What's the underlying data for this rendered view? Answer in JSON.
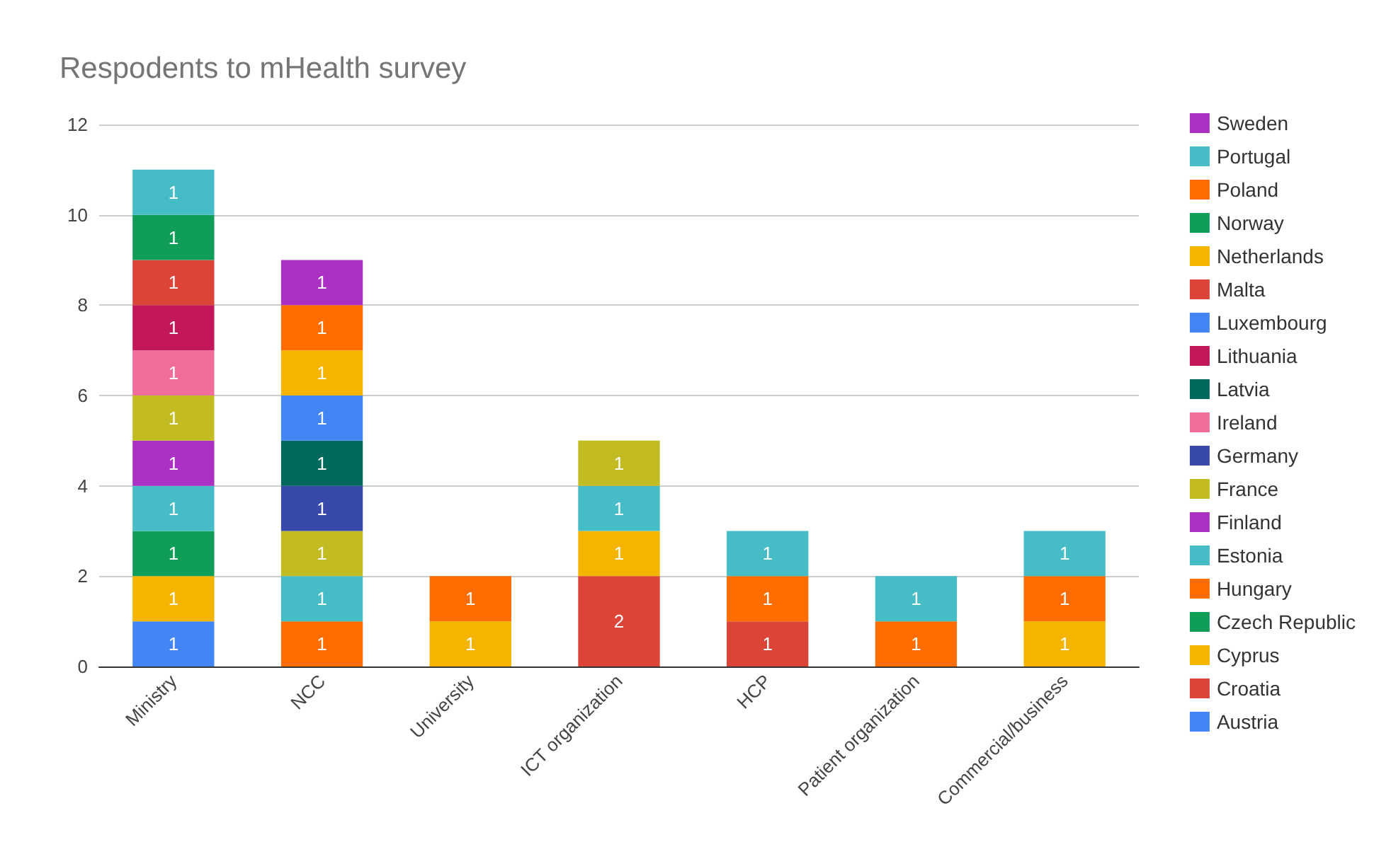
{
  "chart_data": {
    "type": "bar",
    "title": "Respodents to mHealth survey",
    "stacked": true,
    "data_labels": true,
    "grid": "y",
    "legend": "right",
    "categories": [
      "Ministry",
      "NCC",
      "University",
      "ICT organization",
      "HCP",
      "Patient organization",
      "Commercial/business"
    ],
    "ylim": [
      0,
      12
    ],
    "yticks": [
      0,
      2,
      4,
      6,
      8,
      10,
      12
    ],
    "series": [
      {
        "name": "Austria",
        "color": "#4285f4",
        "values": [
          1,
          null,
          null,
          null,
          null,
          null,
          null
        ]
      },
      {
        "name": "Croatia",
        "color": "#db4437",
        "values": [
          null,
          null,
          null,
          2,
          1,
          null,
          null
        ]
      },
      {
        "name": "Cyprus",
        "color": "#f4b400",
        "values": [
          1,
          null,
          1,
          1,
          null,
          null,
          1
        ]
      },
      {
        "name": "Czech Republic",
        "color": "#0f9d58",
        "values": [
          1,
          null,
          null,
          null,
          null,
          null,
          null
        ]
      },
      {
        "name": "Hungary",
        "color": "#ff6d00",
        "values": [
          null,
          1,
          1,
          null,
          1,
          1,
          1
        ]
      },
      {
        "name": "Estonia",
        "color": "#46bdc6",
        "values": [
          1,
          1,
          null,
          1,
          1,
          1,
          1
        ]
      },
      {
        "name": "Finland",
        "color": "#ab30c4",
        "values": [
          1,
          null,
          null,
          null,
          null,
          null,
          null
        ]
      },
      {
        "name": "France",
        "color": "#c2bb22",
        "values": [
          1,
          1,
          null,
          1,
          null,
          null,
          null
        ]
      },
      {
        "name": "Germany",
        "color": "#3949ab",
        "values": [
          null,
          1,
          null,
          null,
          null,
          null,
          null
        ]
      },
      {
        "name": "Ireland",
        "color": "#f06c9b",
        "values": [
          1,
          null,
          null,
          null,
          null,
          null,
          null
        ]
      },
      {
        "name": "Latvia",
        "color": "#00695c",
        "values": [
          null,
          1,
          null,
          null,
          null,
          null,
          null
        ]
      },
      {
        "name": "Lithuania",
        "color": "#c2185b",
        "values": [
          1,
          null,
          null,
          null,
          null,
          null,
          null
        ]
      },
      {
        "name": "Luxembourg",
        "color": "#4285f4",
        "values": [
          null,
          1,
          null,
          null,
          null,
          null,
          null
        ]
      },
      {
        "name": "Malta",
        "color": "#db4437",
        "values": [
          1,
          null,
          null,
          null,
          null,
          null,
          null
        ]
      },
      {
        "name": "Netherlands",
        "color": "#f4b400",
        "values": [
          null,
          1,
          null,
          null,
          null,
          null,
          null
        ]
      },
      {
        "name": "Norway",
        "color": "#0f9d58",
        "values": [
          1,
          null,
          null,
          null,
          null,
          null,
          null
        ]
      },
      {
        "name": "Poland",
        "color": "#ff6d00",
        "values": [
          null,
          1,
          null,
          null,
          null,
          null,
          null
        ]
      },
      {
        "name": "Portugal",
        "color": "#46bdc6",
        "values": [
          1,
          null,
          null,
          null,
          null,
          null,
          null
        ]
      },
      {
        "name": "Sweden",
        "color": "#ab30c4",
        "values": [
          null,
          1,
          null,
          null,
          null,
          null,
          null
        ]
      }
    ]
  }
}
